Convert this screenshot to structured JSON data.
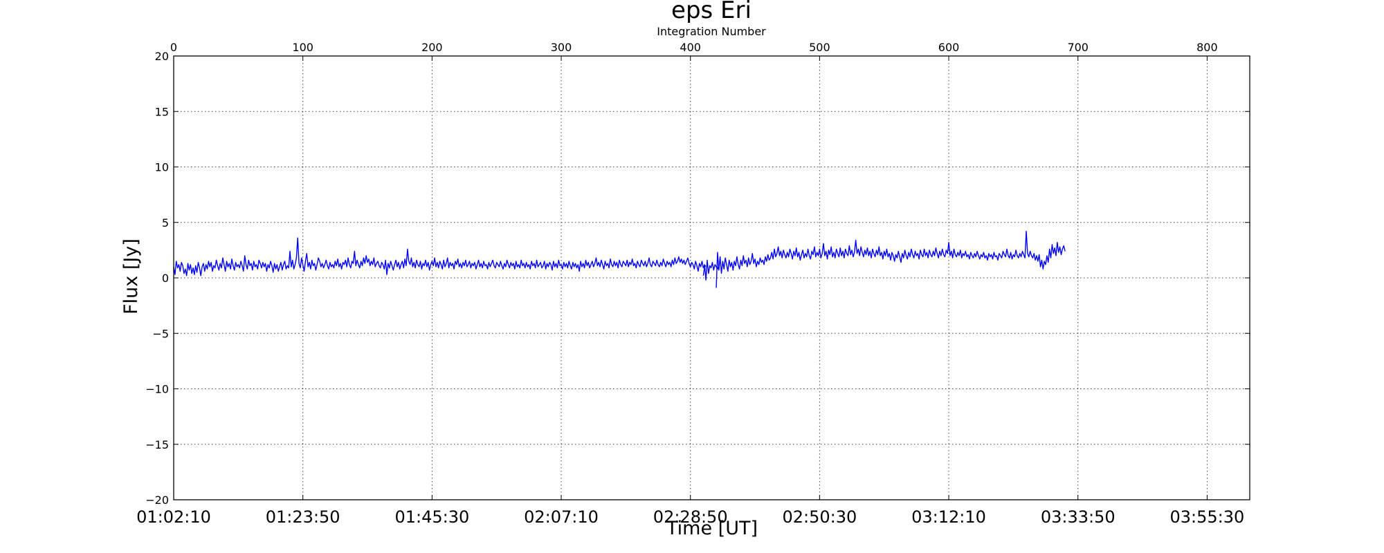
{
  "chart_data": {
    "type": "line",
    "title": "eps Eri",
    "top_axis_label": "Integration Number",
    "xlabel": "Time [UT]",
    "ylabel": "Flux [Jy]",
    "ylim": [
      -20,
      20
    ],
    "xlim": [
      0,
      833
    ],
    "grid": true,
    "line_color": "#0000ff",
    "yticks": [
      -20,
      -15,
      -10,
      -5,
      0,
      5,
      10,
      15,
      20
    ],
    "ytick_labels": [
      "−20",
      "−15",
      "−10",
      "−5",
      "0",
      "5",
      "10",
      "15",
      "20"
    ],
    "top_ticks": [
      0,
      100,
      200,
      300,
      400,
      500,
      600,
      700,
      800
    ],
    "top_tick_labels": [
      "0",
      "100",
      "200",
      "300",
      "400",
      "500",
      "600",
      "700",
      "800"
    ],
    "bottom_ticks": [
      0,
      100,
      200,
      300,
      400,
      500,
      600,
      700,
      800
    ],
    "bottom_tick_labels": [
      "01:02:10",
      "01:23:50",
      "01:45:30",
      "02:07:10",
      "02:28:50",
      "02:50:30",
      "03:12:10",
      "03:33:50",
      "03:55:30"
    ],
    "series": [
      {
        "segments": [
          {
            "x_start": 0,
            "values": [
              1.0,
              0.3,
              1.5,
              0.9,
              1.2,
              0.6,
              1.4,
              1.1,
              0.4,
              0.8,
              0.2,
              1.3,
              0.7,
              1.2,
              0.4,
              0.9,
              0.3,
              1.1,
              0.5,
              1.4,
              0.9,
              0.2,
              1.0,
              1.3,
              0.6,
              1.2,
              0.8,
              1.5,
              1.0,
              1.4,
              0.6,
              1.1,
              0.9,
              1.6,
              1.1,
              0.7,
              1.3,
              0.9,
              1.8,
              1.2,
              0.6,
              1.5,
              1.0,
              1.3,
              0.8,
              1.7,
              1.1,
              0.7,
              1.4,
              1.0,
              1.2,
              0.9,
              1.5,
              1.1,
              0.6,
              2.0,
              1.2,
              0.8,
              1.6,
              1.1,
              1.3,
              0.7,
              1.5,
              1.0,
              1.2,
              0.8,
              1.6,
              1.3,
              0.9,
              1.4,
              1.0,
              1.3,
              0.6,
              1.2,
              0.9,
              1.5,
              1.1,
              0.5,
              1.3,
              0.8,
              1.2,
              0.6,
              1.0,
              1.4,
              0.7,
              1.2,
              1.5,
              0.8,
              1.1,
              0.9,
              2.4,
              1.0,
              1.6,
              0.8,
              1.2,
              1.8,
              3.6,
              1.3,
              0.9,
              1.8,
              1.2,
              0.6,
              1.5,
              2.2,
              1.0,
              1.4,
              0.8,
              1.6,
              1.1,
              1.3,
              0.7,
              1.2,
              1.8,
              1.5,
              1.0,
              1.3,
              0.9,
              1.2,
              1.6,
              1.1,
              0.8,
              1.4,
              1.0,
              1.2,
              0.9,
              1.5,
              1.1,
              1.7,
              1.0,
              1.3,
              0.8,
              1.4,
              1.2,
              1.6,
              1.0,
              1.8,
              1.2,
              0.9,
              1.5,
              1.3,
              2.4,
              1.1,
              1.6,
              1.2,
              0.9,
              1.5,
              1.1,
              1.8,
              1.3,
              2.0,
              1.4,
              1.7,
              1.1,
              1.5,
              1.2,
              1.8,
              1.0,
              1.3,
              1.5,
              1.1,
              0.9,
              1.4,
              1.2,
              0.8,
              1.6,
              0.3,
              1.3,
              0.9,
              1.5,
              1.1,
              0.7,
              1.2,
              1.6,
              1.0,
              1.4,
              0.8,
              1.2,
              1.5,
              0.9,
              1.7,
              1.1,
              2.6,
              1.5,
              1.2,
              1.8,
              1.0,
              1.4,
              0.9,
              1.6,
              1.2,
              1.0,
              1.5,
              0.8,
              1.3,
              1.1,
              1.6,
              1.0,
              1.4,
              0.7,
              1.2,
              1.5,
              1.1,
              1.8,
              1.0,
              1.4,
              0.9,
              1.5,
              1.2,
              0.8,
              1.6,
              1.0,
              1.3,
              1.8,
              0.9,
              1.4,
              1.1,
              1.3,
              0.8,
              1.5,
              1.2,
              1.7,
              1.0,
              1.3,
              0.9,
              1.4,
              1.1,
              1.6,
              1.0,
              1.2,
              1.5,
              0.9,
              1.3,
              1.1,
              1.4,
              0.8,
              1.2,
              1.6,
              1.0,
              1.3,
              0.9,
              1.5,
              1.1,
              1.2,
              0.8,
              1.4,
              1.0,
              1.3,
              1.6,
              1.1,
              0.9,
              1.4,
              1.2,
              1.0,
              1.5,
              1.1,
              0.8,
              1.3,
              1.0,
              1.6,
              1.2,
              0.9,
              1.4,
              1.1,
              1.3,
              0.8,
              1.5,
              1.0,
              1.2,
              0.9,
              1.6,
              1.1,
              1.3,
              0.9,
              1.4,
              1.0,
              1.2,
              0.8,
              1.5,
              1.1,
              1.3,
              0.9,
              1.6,
              1.0,
              1.2,
              1.4,
              0.9,
              1.1,
              1.5,
              0.8,
              1.3,
              1.0,
              1.4,
              1.2,
              0.7,
              1.5,
              1.0,
              1.3,
              0.9,
              1.6,
              1.1,
              1.2,
              0.8,
              1.4,
              1.0,
              1.3,
              0.9,
              1.5,
              1.1,
              0.8,
              1.4,
              1.0,
              1.3,
              0.9,
              1.2,
              0.6,
              1.5,
              1.0,
              1.3,
              0.9,
              1.6,
              1.1,
              1.4,
              0.9,
              1.2,
              1.5,
              1.0,
              1.3,
              1.8,
              1.1,
              1.4,
              1.0,
              1.6,
              1.2,
              0.8,
              1.5,
              1.1,
              1.3,
              0.9,
              1.7,
              1.2,
              1.0,
              1.5,
              1.1,
              1.4,
              0.9,
              1.6,
              1.2,
              1.0,
              1.5,
              1.3,
              1.1,
              1.6,
              1.0,
              1.4,
              1.2,
              1.7,
              1.1,
              1.3,
              0.9,
              1.5,
              1.2,
              1.0,
              1.6,
              1.3,
              1.1,
              1.5,
              1.0,
              1.3,
              1.8,
              1.2,
              1.0,
              1.5,
              1.3,
              1.1,
              1.6,
              1.2,
              1.0,
              1.4,
              1.1,
              1.7,
              1.3,
              1.0,
              1.5,
              1.2,
              1.4,
              1.0,
              1.6,
              1.2,
              1.8,
              1.3,
              1.5,
              1.9,
              1.4,
              1.7,
              1.3,
              1.6,
              1.2,
              1.5,
              1.8,
              1.3,
              1.0,
              1.4,
              1.2,
              0.8,
              1.5,
              1.1,
              0.6,
              1.3,
              1.0,
              1.5,
              0.9,
              1.2,
              -0.2,
              1.6,
              0.4,
              1.1,
              0.9,
              1.4,
              0.7,
              1.2,
              1.0,
              0.8,
              1.1
            ]
          },
          {
            "x_start": 410,
            "values": [
              0.2,
              1.0,
              1.1
            ]
          },
          {
            "x_start": 420,
            "values": [
              -0.9,
              2.3,
              0.7,
              1.9,
              0.4,
              1.5,
              0.8,
              1.8,
              1.2,
              0.6,
              1.6,
              1.0,
              1.4,
              0.7,
              1.5,
              1.1,
              1.9,
              1.2,
              0.8,
              1.6,
              1.1,
              2.0,
              1.3,
              1.6,
              1.0,
              1.8,
              1.2,
              1.5,
              2.2,
              1.3,
              1.7,
              1.0,
              1.5,
              1.2,
              1.8,
              1.4,
              1.6,
              1.2,
              1.9,
              1.5,
              2.1,
              1.6,
              1.8,
              2.3,
              1.7,
              2.6,
              1.9,
              2.2,
              2.8,
              2.0,
              2.4,
              1.8,
              2.5,
              2.1,
              1.8,
              2.3,
              1.9,
              2.6,
              2.2,
              1.7,
              2.4,
              2.0,
              2.7,
              1.9,
              2.3,
              1.6,
              2.1,
              2.5,
              1.8,
              2.2,
              1.9,
              2.6,
              2.0,
              1.7,
              2.4,
              2.1,
              2.8,
              1.9,
              2.3,
              2.0,
              2.6,
              1.8,
              2.2,
              3.1,
              2.0,
              2.4,
              1.7,
              2.5,
              2.1,
              2.8,
              1.9,
              2.3,
              1.8,
              2.6,
              2.2,
              1.9,
              2.7,
              2.0,
              2.4,
              1.8,
              2.6,
              2.2,
              2.0,
              2.9,
              2.1,
              2.5,
              1.9,
              2.3,
              3.4,
              2.2,
              2.6,
              2.0,
              2.8,
              2.3,
              1.9,
              2.5,
              2.1,
              2.7,
              2.0,
              2.4,
              1.8,
              2.6,
              2.2,
              1.9,
              2.5,
              2.1,
              2.8,
              2.0,
              2.3,
              1.7,
              2.4,
              2.0,
              2.6,
              1.9,
              2.2,
              1.6,
              2.3,
              2.0,
              1.5,
              2.1,
              1.8,
              2.4,
              1.9,
              1.4,
              2.2,
              1.8,
              2.5,
              2.0,
              1.7,
              2.3,
              1.9,
              2.6,
              2.1,
              1.8,
              2.4,
              2.0,
              2.2,
              1.7,
              2.5,
              2.1,
              1.9,
              2.6,
              2.0,
              2.3,
              1.8,
              2.5,
              2.1,
              1.9,
              2.4,
              2.0,
              2.7,
              2.2,
              1.8,
              2.4,
              2.0,
              2.6,
              2.1,
              1.9,
              2.5,
              2.2,
              3.2,
              2.0,
              2.4,
              1.8,
              2.6,
              2.1,
              1.9,
              2.3,
              2.0,
              2.5,
              1.8,
              2.2,
              2.0,
              2.4,
              1.9,
              2.1,
              1.7,
              2.3,
              2.0,
              1.8,
              2.2,
              1.9,
              2.4,
              2.0,
              1.7,
              2.1,
              1.9,
              2.3,
              1.8,
              2.0,
              1.6,
              2.2,
              1.9,
              2.1,
              1.7,
              2.3,
              1.9,
              2.0,
              1.6,
              2.2,
              2.0,
              1.8,
              2.4,
              2.1,
              1.9,
              2.6,
              2.0,
              1.8,
              2.3,
              1.7,
              2.1,
              1.9,
              2.5,
              2.0,
              1.8,
              2.2,
              1.9,
              2.4,
              2.1,
              1.8,
              4.2,
              2.2,
              1.9,
              2.4,
              2.0,
              1.8,
              2.2,
              1.6,
              2.0,
              1.5,
              2.1,
              1.0,
              1.6,
              0.8,
              1.5,
              1.2,
              2.0,
              1.4,
              2.6,
              1.8,
              3.0,
              2.2,
              2.7,
              2.0,
              3.2,
              2.3,
              2.8,
              2.1,
              2.6,
              2.9,
              2.4
            ]
          }
        ]
      }
    ]
  }
}
